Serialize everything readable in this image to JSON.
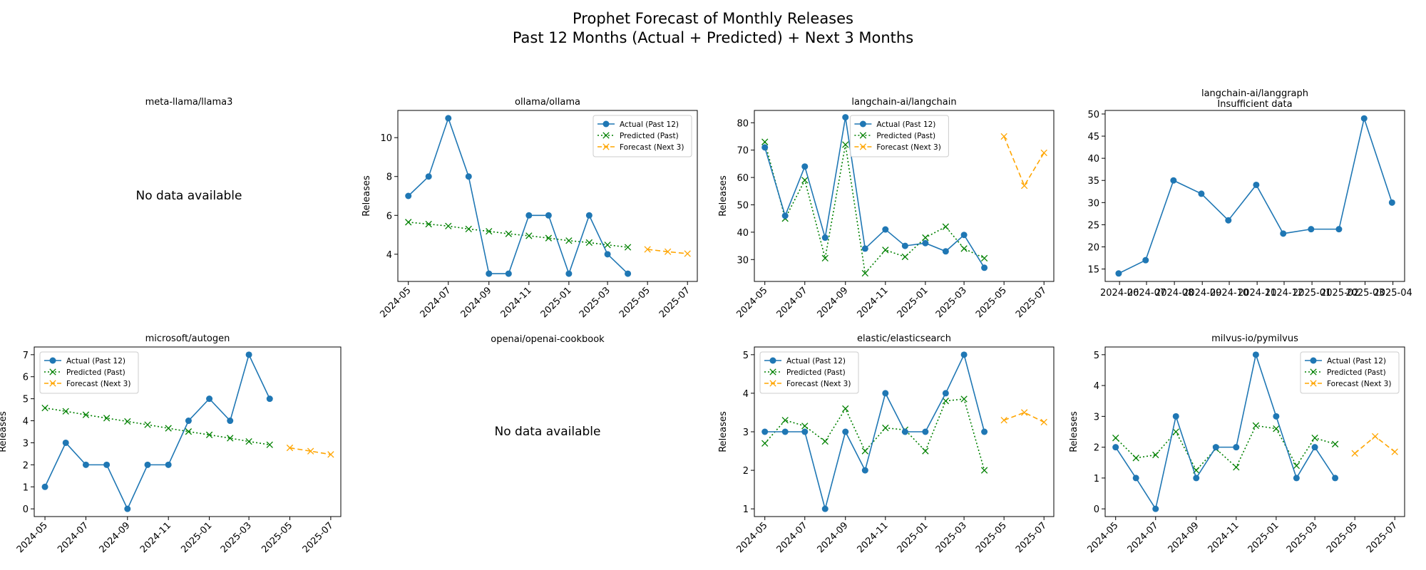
{
  "figure": {
    "title_line1": "Prophet Forecast of Monthly Releases",
    "title_line2": "Past 12 Months (Actual + Predicted) + Next 3 Months"
  },
  "legend_labels": {
    "actual": "Actual (Past 12)",
    "predicted": "Predicted (Past)",
    "forecast": "Forecast (Next 3)"
  },
  "colors": {
    "actual": "#1f77b4",
    "predicted": "#008000",
    "forecast": "#ffa500"
  },
  "no_data_text": "No data available",
  "chart_data": [
    {
      "type": "line",
      "title": "meta-llama/llama3",
      "nodata": true
    },
    {
      "type": "line",
      "title": "ollama/ollama",
      "ylabel": "Releases",
      "xlim": [
        "2024-04-15",
        "2025-07-16"
      ],
      "ylim": [
        2.6,
        11.4
      ],
      "yticks": [
        4,
        6,
        8,
        10
      ],
      "xticks": [
        "2024-05",
        "2024-07",
        "2024-09",
        "2024-11",
        "2025-01",
        "2025-03",
        "2025-05",
        "2025-07"
      ],
      "legend": "top-right",
      "actual": {
        "x": [
          "2024-05",
          "2024-06",
          "2024-07",
          "2024-08",
          "2024-09",
          "2024-10",
          "2024-11",
          "2024-12",
          "2025-01",
          "2025-02",
          "2025-03",
          "2025-04"
        ],
        "y": [
          7,
          8,
          11,
          8,
          3,
          3,
          6,
          6,
          3,
          6,
          4,
          3
        ]
      },
      "predicted": {
        "x": [
          "2024-05",
          "2024-06",
          "2024-07",
          "2024-08",
          "2024-09",
          "2024-10",
          "2024-11",
          "2024-12",
          "2025-01",
          "2025-02",
          "2025-03",
          "2025-04"
        ],
        "y": [
          5.65,
          5.55,
          5.45,
          5.3,
          5.18,
          5.05,
          4.95,
          4.83,
          4.7,
          4.6,
          4.48,
          4.36
        ]
      },
      "forecast": {
        "x": [
          "2025-05",
          "2025-06",
          "2025-07"
        ],
        "y": [
          4.25,
          4.13,
          4.03
        ]
      }
    },
    {
      "type": "line",
      "title": "langchain-ai/langchain",
      "ylabel": "Releases",
      "xlim": [
        "2024-04-15",
        "2025-07-16"
      ],
      "ylim": [
        22,
        84.5
      ],
      "yticks": [
        30,
        40,
        50,
        60,
        70,
        80
      ],
      "xticks": [
        "2024-05",
        "2024-07",
        "2024-09",
        "2024-11",
        "2025-01",
        "2025-03",
        "2025-05",
        "2025-07"
      ],
      "legend": "top-center",
      "actual": {
        "x": [
          "2024-05",
          "2024-06",
          "2024-07",
          "2024-08",
          "2024-09",
          "2024-10",
          "2024-11",
          "2024-12",
          "2025-01",
          "2025-02",
          "2025-03",
          "2025-04"
        ],
        "y": [
          71,
          46,
          64,
          38,
          82,
          34,
          41,
          35,
          36,
          33,
          39,
          27
        ]
      },
      "predicted": {
        "x": [
          "2024-05",
          "2024-06",
          "2024-07",
          "2024-08",
          "2024-09",
          "2024-10",
          "2024-11",
          "2024-12",
          "2025-01",
          "2025-02",
          "2025-03",
          "2025-04"
        ],
        "y": [
          73,
          45,
          59,
          30.5,
          72,
          25,
          33.5,
          31,
          38,
          42,
          34,
          30.5
        ]
      },
      "forecast": {
        "x": [
          "2025-05",
          "2025-06",
          "2025-07"
        ],
        "y": [
          75,
          57,
          69
        ]
      }
    },
    {
      "type": "line",
      "title": "langchain-ai/langgraph",
      "subtitle": "Insufficient data",
      "xlim": [
        "2024-05-16",
        "2025-04-14"
      ],
      "ylim": [
        12.2,
        50.8
      ],
      "yticks": [
        15,
        20,
        25,
        30,
        35,
        40,
        45,
        50
      ],
      "xticks": [
        "2024-06",
        "2024-07",
        "2024-08",
        "2024-09",
        "2024-10",
        "2024-11",
        "2024-12",
        "2025-01",
        "2025-02",
        "2025-03",
        "2025-04"
      ],
      "actual": {
        "x": [
          "2024-05-31",
          "2024-06-30",
          "2024-07-31",
          "2024-08-31",
          "2024-09-30",
          "2024-10-31",
          "2024-11-30",
          "2024-12-31",
          "2025-01-31",
          "2025-02-28",
          "2025-03-31"
        ],
        "y": [
          14,
          17,
          35,
          32,
          26,
          34,
          23,
          24,
          24,
          49,
          30
        ]
      }
    },
    {
      "type": "line",
      "title": "microsoft/autogen",
      "ylabel": "Releases",
      "xlim": [
        "2024-04-15",
        "2025-07-16"
      ],
      "ylim": [
        -0.35,
        7.35
      ],
      "yticks": [
        0,
        1,
        2,
        3,
        4,
        5,
        6,
        7
      ],
      "xticks": [
        "2024-05",
        "2024-07",
        "2024-09",
        "2024-11",
        "2025-01",
        "2025-03",
        "2025-05",
        "2025-07"
      ],
      "legend": "top-left",
      "actual": {
        "x": [
          "2024-05",
          "2024-06",
          "2024-07",
          "2024-08",
          "2024-09",
          "2024-10",
          "2024-11",
          "2024-12",
          "2025-01",
          "2025-02",
          "2025-03",
          "2025-04"
        ],
        "y": [
          1,
          3,
          2,
          2,
          0,
          2,
          2,
          4,
          5,
          4,
          7,
          5
        ]
      },
      "predicted": {
        "x": [
          "2024-05",
          "2024-06",
          "2024-07",
          "2024-08",
          "2024-09",
          "2024-10",
          "2024-11",
          "2024-12",
          "2025-01",
          "2025-02",
          "2025-03",
          "2025-04"
        ],
        "y": [
          4.58,
          4.43,
          4.27,
          4.12,
          3.97,
          3.82,
          3.66,
          3.51,
          3.36,
          3.21,
          3.06,
          2.91
        ]
      },
      "forecast": {
        "x": [
          "2025-05",
          "2025-06",
          "2025-07"
        ],
        "y": [
          2.77,
          2.62,
          2.47
        ]
      }
    },
    {
      "type": "line",
      "title": "openai/openai-cookbook",
      "nodata": true
    },
    {
      "type": "line",
      "title": "elastic/elasticsearch",
      "ylabel": "Releases",
      "xlim": [
        "2024-04-15",
        "2025-07-16"
      ],
      "ylim": [
        0.8,
        5.2
      ],
      "yticks": [
        1,
        2,
        3,
        4,
        5
      ],
      "xticks": [
        "2024-05",
        "2024-07",
        "2024-09",
        "2024-11",
        "2025-01",
        "2025-03",
        "2025-05",
        "2025-07"
      ],
      "legend": "top-left",
      "actual": {
        "x": [
          "2024-05",
          "2024-06",
          "2024-07",
          "2024-08",
          "2024-09",
          "2024-10",
          "2024-11",
          "2024-12",
          "2025-01",
          "2025-02",
          "2025-03",
          "2025-04"
        ],
        "y": [
          3,
          3,
          3,
          1,
          3,
          2,
          4,
          3,
          3,
          4,
          5,
          3
        ]
      },
      "predicted": {
        "x": [
          "2024-05",
          "2024-06",
          "2024-07",
          "2024-08",
          "2024-09",
          "2024-10",
          "2024-11",
          "2024-12",
          "2025-01",
          "2025-02",
          "2025-03",
          "2025-04"
        ],
        "y": [
          2.7,
          3.3,
          3.15,
          2.75,
          3.6,
          2.5,
          3.1,
          3.05,
          2.5,
          3.8,
          3.85,
          2.0
        ]
      },
      "forecast": {
        "x": [
          "2025-05",
          "2025-06",
          "2025-07"
        ],
        "y": [
          3.3,
          3.5,
          3.25
        ]
      }
    },
    {
      "type": "line",
      "title": "milvus-io/pymilvus",
      "ylabel": "Releases",
      "xlim": [
        "2024-04-15",
        "2025-07-16"
      ],
      "ylim": [
        -0.25,
        5.25
      ],
      "yticks": [
        0,
        1,
        2,
        3,
        4,
        5
      ],
      "xticks": [
        "2024-05",
        "2024-07",
        "2024-09",
        "2024-11",
        "2025-01",
        "2025-03",
        "2025-05",
        "2025-07"
      ],
      "legend": "top-right",
      "actual": {
        "x": [
          "2024-05",
          "2024-06",
          "2024-07",
          "2024-08",
          "2024-09",
          "2024-10",
          "2024-11",
          "2024-12",
          "2025-01",
          "2025-02",
          "2025-03",
          "2025-04"
        ],
        "y": [
          2,
          1,
          0,
          3,
          1,
          2,
          2,
          5,
          3,
          1,
          2,
          1
        ]
      },
      "predicted": {
        "x": [
          "2024-05",
          "2024-06",
          "2024-07",
          "2024-08",
          "2024-09",
          "2024-10",
          "2024-11",
          "2024-12",
          "2025-01",
          "2025-02",
          "2025-03",
          "2025-04"
        ],
        "y": [
          2.3,
          1.65,
          1.75,
          2.5,
          1.25,
          1.95,
          1.35,
          2.7,
          2.6,
          1.4,
          2.3,
          2.1
        ]
      },
      "forecast": {
        "x": [
          "2025-05",
          "2025-06",
          "2025-07"
        ],
        "y": [
          1.8,
          2.35,
          1.85
        ]
      }
    }
  ]
}
